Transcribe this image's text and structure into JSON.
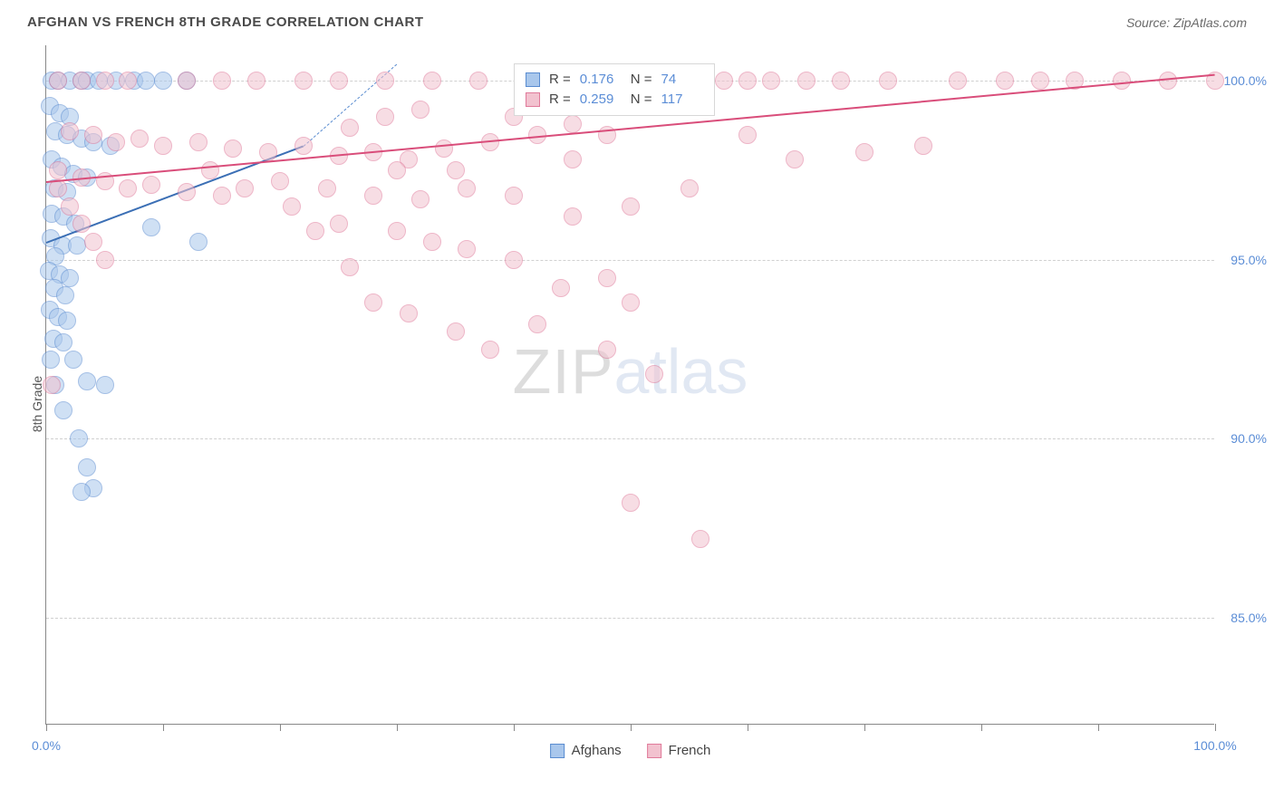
{
  "title": "AFGHAN VS FRENCH 8TH GRADE CORRELATION CHART",
  "source_label": "Source: ZipAtlas.com",
  "ylabel": "8th Grade",
  "watermark": {
    "part1": "ZIP",
    "part2": "atlas"
  },
  "chart": {
    "type": "scatter",
    "xlim": [
      0,
      100
    ],
    "ylim": [
      82,
      101
    ],
    "x_ticks": [
      0,
      10,
      20,
      30,
      40,
      50,
      60,
      70,
      80,
      90,
      100
    ],
    "x_tick_labels": {
      "0": "0.0%",
      "100": "100.0%"
    },
    "y_gridlines": [
      85,
      90,
      95,
      100
    ],
    "y_tick_labels": {
      "85": "85.0%",
      "90": "90.0%",
      "95": "95.0%",
      "100": "100.0%"
    },
    "background_color": "#ffffff",
    "grid_color": "#d0d0d0",
    "axis_color": "#888888",
    "point_radius": 10,
    "point_opacity": 0.55,
    "series": [
      {
        "name": "Afghans",
        "color_fill": "#a9c7ec",
        "color_stroke": "#5a8cd0",
        "R": "0.176",
        "N": "74",
        "trend": {
          "x1": 0,
          "y1": 95.5,
          "x2": 22,
          "y2": 98.2,
          "color": "#3b6fb5"
        },
        "trend_dash": {
          "x1": 22,
          "y1": 98.2,
          "x2": 30,
          "y2": 100.5,
          "color": "#5a8cd0"
        },
        "points": [
          [
            0.5,
            100
          ],
          [
            1,
            100
          ],
          [
            2,
            100
          ],
          [
            3,
            100
          ],
          [
            3.5,
            100
          ],
          [
            4.5,
            100
          ],
          [
            6,
            100
          ],
          [
            7.5,
            100
          ],
          [
            8.5,
            100
          ],
          [
            10,
            100
          ],
          [
            12,
            100
          ],
          [
            0.3,
            99.3
          ],
          [
            1.2,
            99.1
          ],
          [
            2,
            99.0
          ],
          [
            0.8,
            98.6
          ],
          [
            1.8,
            98.5
          ],
          [
            3,
            98.4
          ],
          [
            4,
            98.3
          ],
          [
            5.5,
            98.2
          ],
          [
            0.5,
            97.8
          ],
          [
            1.3,
            97.6
          ],
          [
            2.3,
            97.4
          ],
          [
            3.5,
            97.3
          ],
          [
            0.7,
            97.0
          ],
          [
            1.8,
            96.9
          ],
          [
            0.5,
            96.3
          ],
          [
            1.5,
            96.2
          ],
          [
            2.5,
            96.0
          ],
          [
            9,
            95.9
          ],
          [
            0.4,
            95.6
          ],
          [
            1.4,
            95.4
          ],
          [
            2.6,
            95.4
          ],
          [
            0.8,
            95.1
          ],
          [
            13,
            95.5
          ],
          [
            0.2,
            94.7
          ],
          [
            1.2,
            94.6
          ],
          [
            2.0,
            94.5
          ],
          [
            0.7,
            94.2
          ],
          [
            1.6,
            94.0
          ],
          [
            0.3,
            93.6
          ],
          [
            1.0,
            93.4
          ],
          [
            1.8,
            93.3
          ],
          [
            0.6,
            92.8
          ],
          [
            1.5,
            92.7
          ],
          [
            0.4,
            92.2
          ],
          [
            2.3,
            92.2
          ],
          [
            3.5,
            91.6
          ],
          [
            0.8,
            91.5
          ],
          [
            5,
            91.5
          ],
          [
            1.5,
            90.8
          ],
          [
            2.8,
            90.0
          ],
          [
            3.5,
            89.2
          ],
          [
            4,
            88.6
          ],
          [
            3,
            88.5
          ]
        ]
      },
      {
        "name": "French",
        "color_fill": "#f2c2cf",
        "color_stroke": "#e07a9a",
        "R": "0.259",
        "N": "117",
        "trend": {
          "x1": 0,
          "y1": 97.2,
          "x2": 100,
          "y2": 100.2,
          "color": "#d94d7a"
        },
        "points": [
          [
            1,
            100
          ],
          [
            3,
            100
          ],
          [
            5,
            100
          ],
          [
            7,
            100
          ],
          [
            12,
            100
          ],
          [
            15,
            100
          ],
          [
            18,
            100
          ],
          [
            22,
            100
          ],
          [
            25,
            100
          ],
          [
            29,
            100
          ],
          [
            33,
            100
          ],
          [
            37,
            100
          ],
          [
            42,
            100
          ],
          [
            48,
            100
          ],
          [
            52,
            100
          ],
          [
            55,
            100
          ],
          [
            58,
            100
          ],
          [
            60,
            100
          ],
          [
            62,
            100
          ],
          [
            65,
            100
          ],
          [
            68,
            100
          ],
          [
            72,
            100
          ],
          [
            78,
            100
          ],
          [
            82,
            100
          ],
          [
            85,
            100
          ],
          [
            88,
            100
          ],
          [
            92,
            100
          ],
          [
            96,
            100
          ],
          [
            100,
            100
          ],
          [
            2,
            98.6
          ],
          [
            4,
            98.5
          ],
          [
            6,
            98.3
          ],
          [
            8,
            98.4
          ],
          [
            10,
            98.2
          ],
          [
            13,
            98.3
          ],
          [
            16,
            98.1
          ],
          [
            19,
            98.0
          ],
          [
            22,
            98.2
          ],
          [
            25,
            97.9
          ],
          [
            28,
            98.0
          ],
          [
            31,
            97.8
          ],
          [
            34,
            98.1
          ],
          [
            38,
            98.3
          ],
          [
            42,
            98.5
          ],
          [
            1,
            97.5
          ],
          [
            3,
            97.3
          ],
          [
            5,
            97.2
          ],
          [
            7,
            97.0
          ],
          [
            9,
            97.1
          ],
          [
            12,
            96.9
          ],
          [
            15,
            96.8
          ],
          [
            20,
            97.2
          ],
          [
            24,
            97.0
          ],
          [
            28,
            96.8
          ],
          [
            32,
            96.7
          ],
          [
            36,
            97.0
          ],
          [
            40,
            96.8
          ],
          [
            30,
            97.5
          ],
          [
            35,
            97.5
          ],
          [
            30,
            95.8
          ],
          [
            33,
            95.5
          ],
          [
            36,
            95.3
          ],
          [
            40,
            95.0
          ],
          [
            44,
            94.2
          ],
          [
            26,
            94.8
          ],
          [
            28,
            93.8
          ],
          [
            31,
            93.5
          ],
          [
            35,
            93.0
          ],
          [
            38,
            92.5
          ],
          [
            42,
            93.2
          ],
          [
            48,
            94.5
          ],
          [
            50,
            93.8
          ],
          [
            25,
            96.0
          ],
          [
            45,
            96.2
          ],
          [
            50,
            96.5
          ],
          [
            55,
            97.0
          ],
          [
            50,
            88.2
          ],
          [
            56,
            87.2
          ],
          [
            48,
            92.5
          ],
          [
            52,
            91.8
          ],
          [
            0.5,
            91.5
          ],
          [
            1,
            97.0
          ],
          [
            2,
            96.5
          ],
          [
            3,
            96.0
          ],
          [
            4,
            95.5
          ],
          [
            5,
            95.0
          ],
          [
            60,
            98.5
          ],
          [
            64,
            97.8
          ],
          [
            70,
            98.0
          ],
          [
            75,
            98.2
          ],
          [
            45,
            97.8
          ],
          [
            14,
            97.5
          ],
          [
            17,
            97.0
          ],
          [
            21,
            96.5
          ],
          [
            23,
            95.8
          ],
          [
            26,
            98.7
          ],
          [
            29,
            99.0
          ],
          [
            32,
            99.2
          ],
          [
            40,
            99.0
          ],
          [
            45,
            98.8
          ],
          [
            48,
            98.5
          ]
        ]
      }
    ]
  },
  "legend_top": {
    "rows": [
      {
        "swatch_fill": "#a9c7ec",
        "swatch_stroke": "#5a8cd0",
        "R_label": "R =",
        "R": "0.176",
        "N_label": "N =",
        "N": "74"
      },
      {
        "swatch_fill": "#f2c2cf",
        "swatch_stroke": "#e07a9a",
        "R_label": "R =",
        "R": "0.259",
        "N_label": "N =",
        "N": "117"
      }
    ]
  },
  "legend_bottom": [
    {
      "label": "Afghans",
      "fill": "#a9c7ec",
      "stroke": "#5a8cd0"
    },
    {
      "label": "French",
      "fill": "#f2c2cf",
      "stroke": "#e07a9a"
    }
  ]
}
